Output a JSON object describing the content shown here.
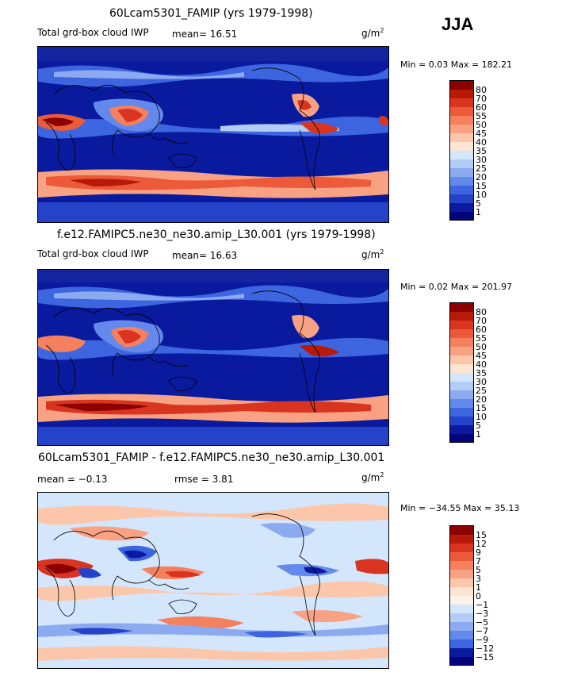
{
  "season": "JJA",
  "units": {
    "base": "g/m",
    "exp": "2"
  },
  "panels": [
    {
      "title": "60Lcam5301_FAMIP (yrs 1979-1998)",
      "variable": "Total grd-box cloud IWP",
      "stat_line": "mean=  16.51",
      "minmax": "Min =   0.03 Max = 182.21",
      "colorbar": {
        "labels": [
          "80",
          "70",
          "60",
          "55",
          "50",
          "45",
          "40",
          "35",
          "30",
          "25",
          "20",
          "15",
          "10",
          "5",
          "1"
        ],
        "colors": [
          "#8b0000",
          "#b81a0a",
          "#d9341f",
          "#ec5a3a",
          "#f5805e",
          "#f8a283",
          "#fbc6a9",
          "#fde5d3",
          "#d3e6fb",
          "#b2ccf6",
          "#8caaf0",
          "#6389ec",
          "#3d65e0",
          "#2443c8",
          "#0b1a9e",
          "#02057a"
        ]
      }
    },
    {
      "title": "f.e12.FAMIPC5.ne30_ne30.amip_L30.001 (yrs 1979-1998)",
      "variable": "Total grd-box cloud IWP",
      "stat_line": "mean=  16.63",
      "minmax": "Min =   0.02 Max = 201.97",
      "colorbar": {
        "labels": [
          "80",
          "70",
          "60",
          "55",
          "50",
          "45",
          "40",
          "35",
          "30",
          "25",
          "20",
          "15",
          "10",
          "5",
          "1"
        ],
        "colors": [
          "#8b0000",
          "#b81a0a",
          "#d9341f",
          "#ec5a3a",
          "#f5805e",
          "#f8a283",
          "#fbc6a9",
          "#fde5d3",
          "#d3e6fb",
          "#b2ccf6",
          "#8caaf0",
          "#6389ec",
          "#3d65e0",
          "#2443c8",
          "#0b1a9e",
          "#02057a"
        ]
      }
    },
    {
      "title": "60Lcam5301_FAMIP - f.e12.FAMIPC5.ne30_ne30.amip_L30.001",
      "mean_line": "mean =  −0.13",
      "rmse_line": "rmse =   3.81",
      "minmax": "Min = −34.55 Max =  35.13",
      "colorbar": {
        "labels": [
          "15",
          "12",
          "9",
          "7",
          "5",
          "3",
          "1",
          "0",
          "−1",
          "−3",
          "−5",
          "−7",
          "−9",
          "−12",
          "−15"
        ],
        "colors": [
          "#8b0000",
          "#b81a0a",
          "#d9341f",
          "#ec5a3a",
          "#f5805e",
          "#f8a283",
          "#fbc6a9",
          "#fde5d3",
          "#fdf2ea",
          "#d3e6fb",
          "#b2ccf6",
          "#8caaf0",
          "#6389ec",
          "#3d65e0",
          "#0b1a9e",
          "#02057a"
        ]
      }
    }
  ]
}
